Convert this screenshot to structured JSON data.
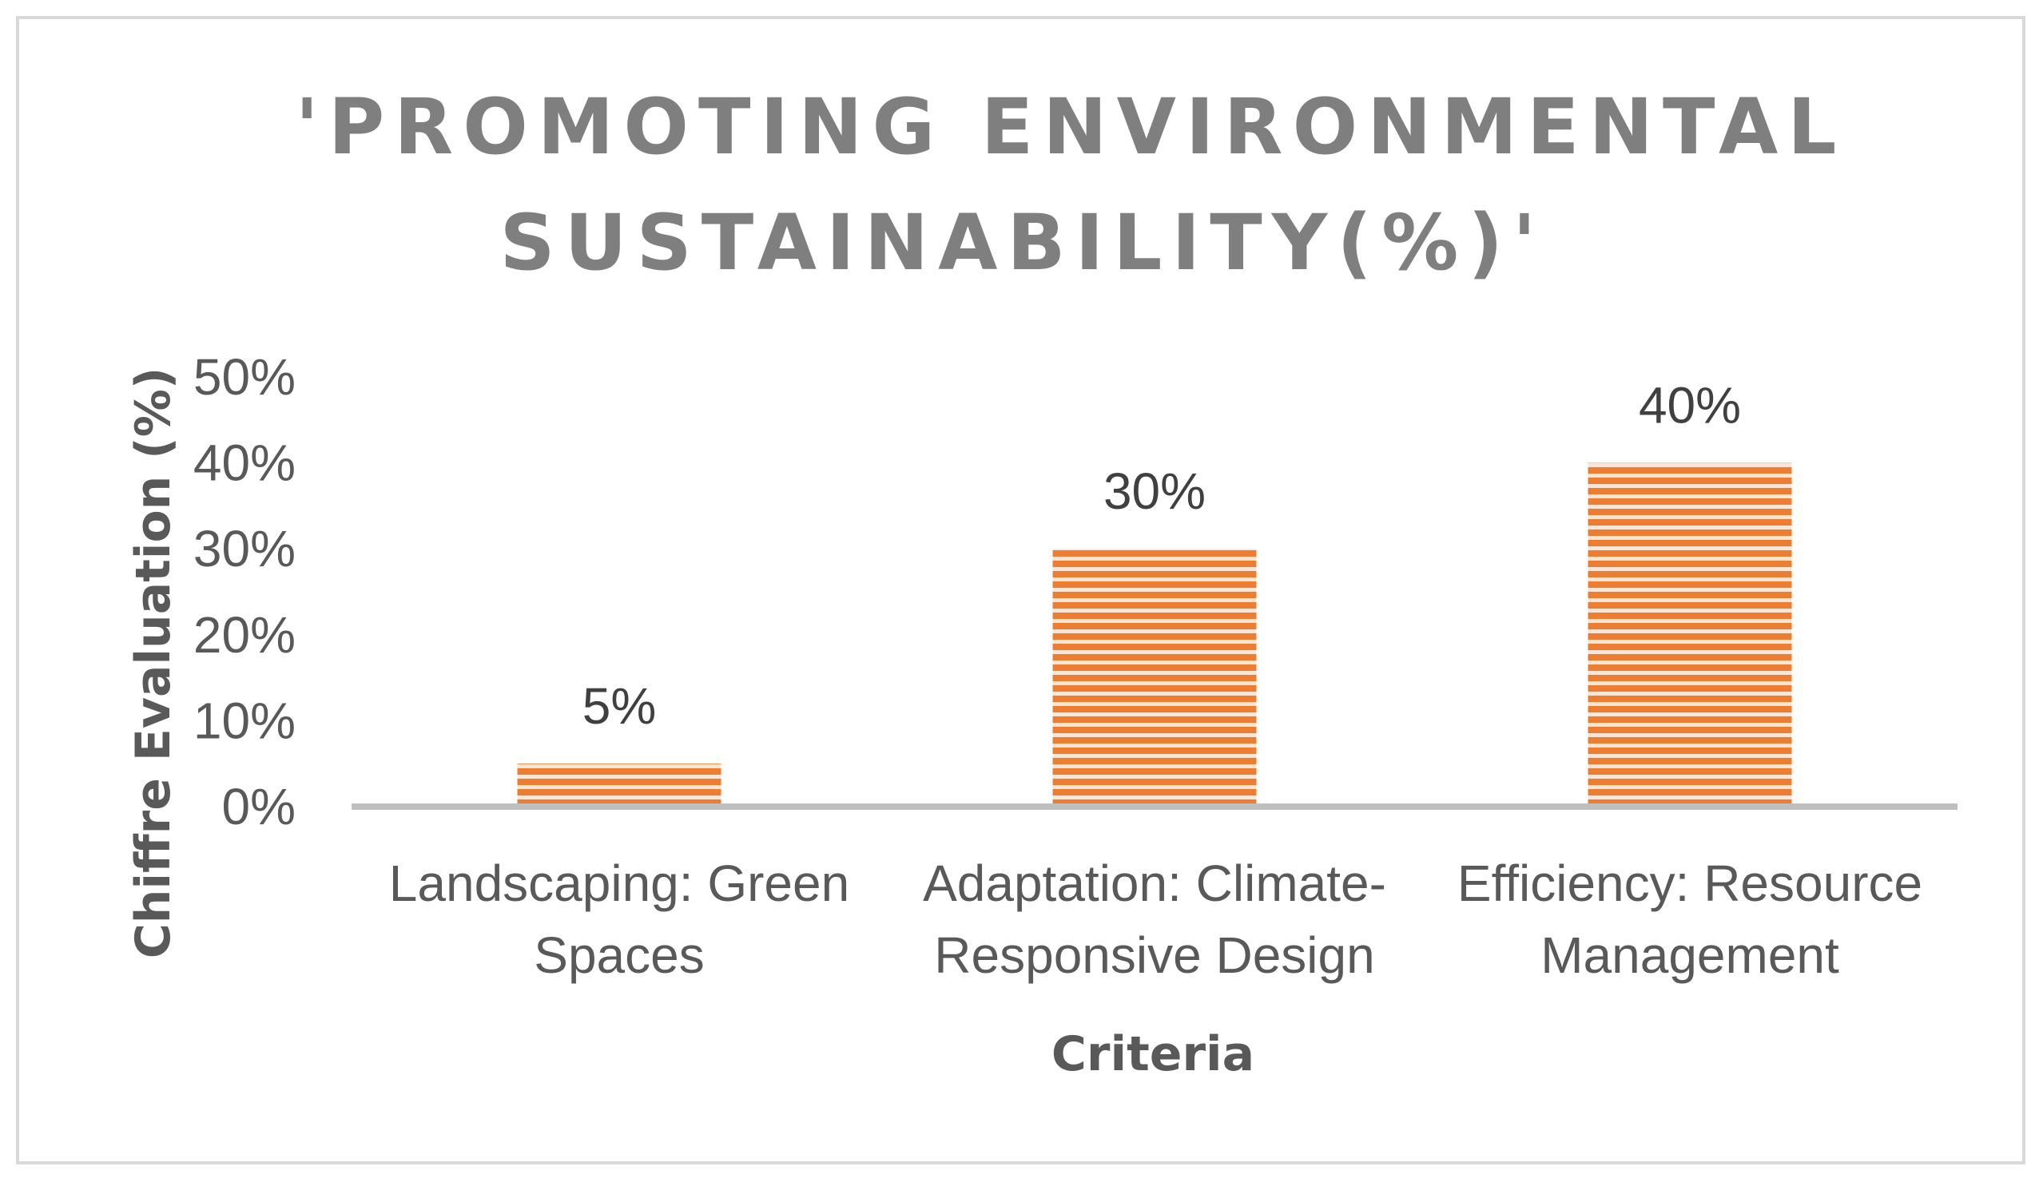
{
  "chart_data": {
    "type": "bar",
    "title_lines": [
      "'PROMOTING ENVIRONMENTAL",
      "SUSTAINABILITY(%)'"
    ],
    "xlabel": "Criteria",
    "ylabel": "Chiffre Evaluation (%)",
    "ylim": [
      0,
      50
    ],
    "yticks": [
      "0%",
      "10%",
      "20%",
      "30%",
      "40%",
      "50%"
    ],
    "categories": [
      {
        "line1": "Landscaping: Green",
        "line2": "Spaces"
      },
      {
        "line1": "Adaptation: Climate-",
        "line2": "Responsive Design"
      },
      {
        "line1": "Efficiency: Resource",
        "line2": "Management"
      }
    ],
    "values": [
      5,
      30,
      40
    ],
    "data_labels": [
      "5%",
      "30%",
      "40%"
    ],
    "grid": false,
    "legend": "none",
    "bar_color": "#ed7d31",
    "bar_stripe_color": "#fbe5d6",
    "axis_color": "#bfbfbf"
  }
}
